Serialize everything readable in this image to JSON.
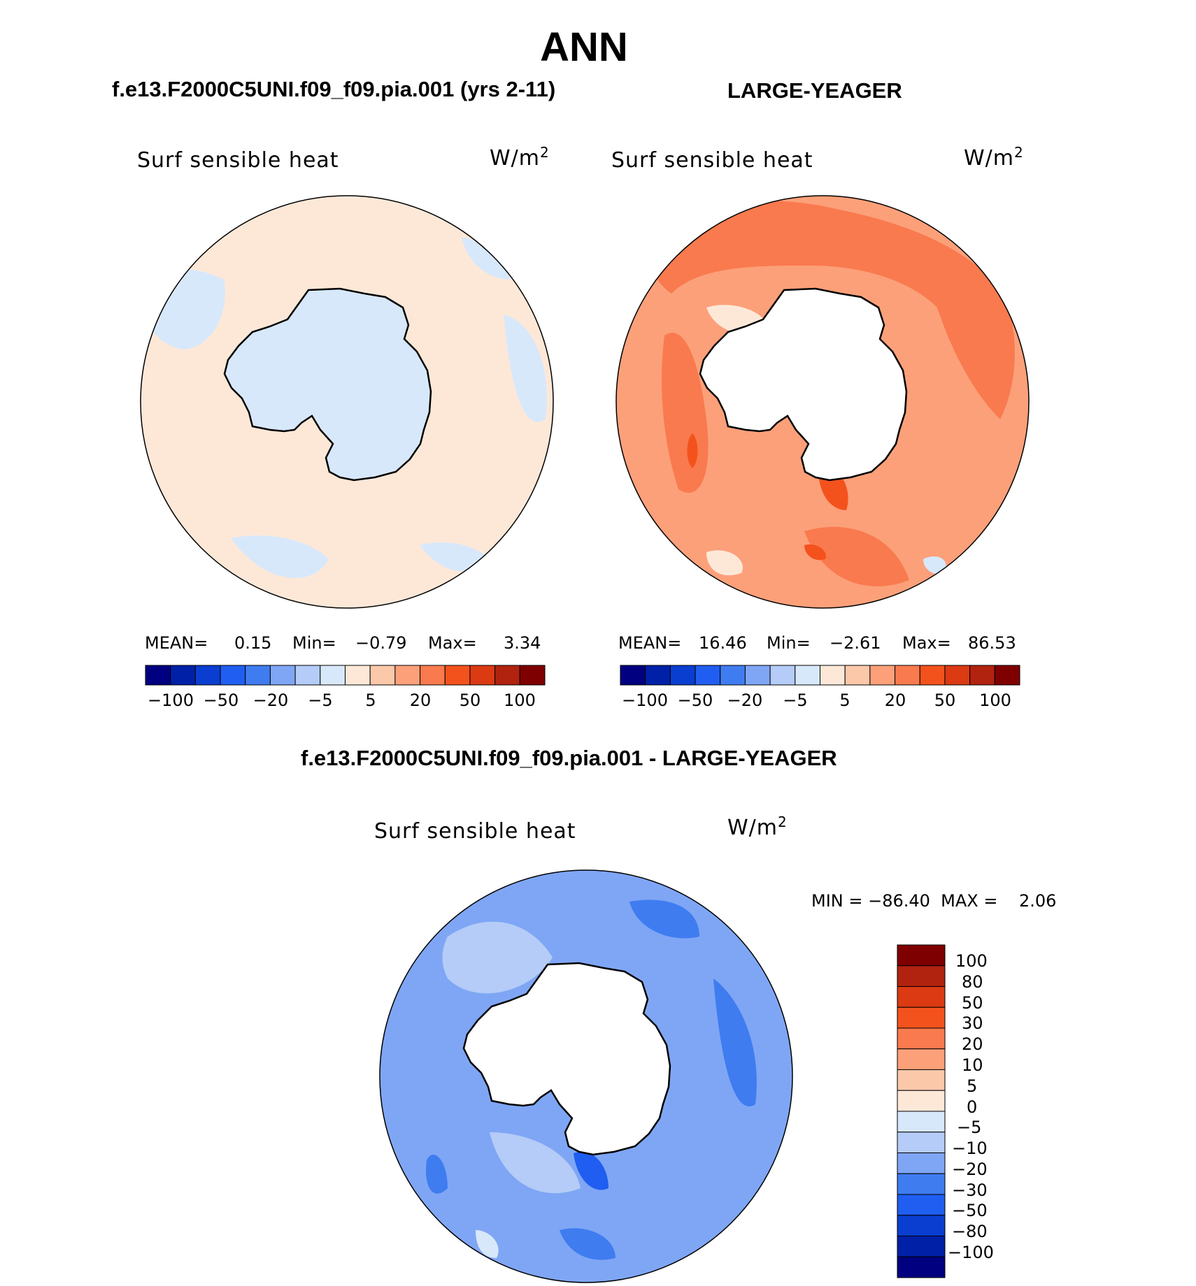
{
  "figure": {
    "title": "ANN",
    "colors": {
      "scale": [
        "#000080",
        "#0020a8",
        "#0a3ed0",
        "#1f5ef0",
        "#3f7cf0",
        "#7fa6f5",
        "#b4ccf7",
        "#d8e8fb",
        "#fde8d8",
        "#fcc8aa",
        "#fca07a",
        "#f97a4e",
        "#f4521c",
        "#db3a12",
        "#b1220f",
        "#7f0000"
      ]
    },
    "panels": [
      {
        "title": "f.e13.F2000C5UNI.f09_f09.pia.001 (yrs 2-11)",
        "variable": "Surf sensible heat",
        "unit_base": "W/m",
        "unit_exp": "2",
        "stats": {
          "mean_label": "MEAN=",
          "mean": "0.15",
          "min_label": "Min=",
          "min": "−0.79",
          "max_label": "Max=",
          "max": "3.34"
        },
        "colorbar_ticks": [
          "−100",
          "−50",
          "−20",
          "−5",
          "5",
          "20",
          "50",
          "100"
        ]
      },
      {
        "title": "LARGE-YEAGER",
        "variable": "Surf sensible heat",
        "unit_base": "W/m",
        "unit_exp": "2",
        "stats": {
          "mean_label": "MEAN=",
          "mean": "16.46",
          "min_label": "Min=",
          "min": "−2.61",
          "max_label": "Max=",
          "max": "86.53"
        },
        "colorbar_ticks": [
          "−100",
          "−50",
          "−20",
          "−5",
          "5",
          "20",
          "50",
          "100"
        ]
      },
      {
        "title": "f.e13.F2000C5UNI.f09_f09.pia.001 - LARGE-YEAGER",
        "variable": "Surf sensible heat",
        "unit_base": "W/m",
        "unit_exp": "2",
        "stats_line": "MIN = −86.40  MAX =    2.06",
        "colorbar_ticks": [
          "100",
          "80",
          "50",
          "30",
          "20",
          "10",
          "5",
          "0",
          "−5",
          "−10",
          "−20",
          "−30",
          "−50",
          "−80",
          "−100"
        ]
      }
    ]
  }
}
